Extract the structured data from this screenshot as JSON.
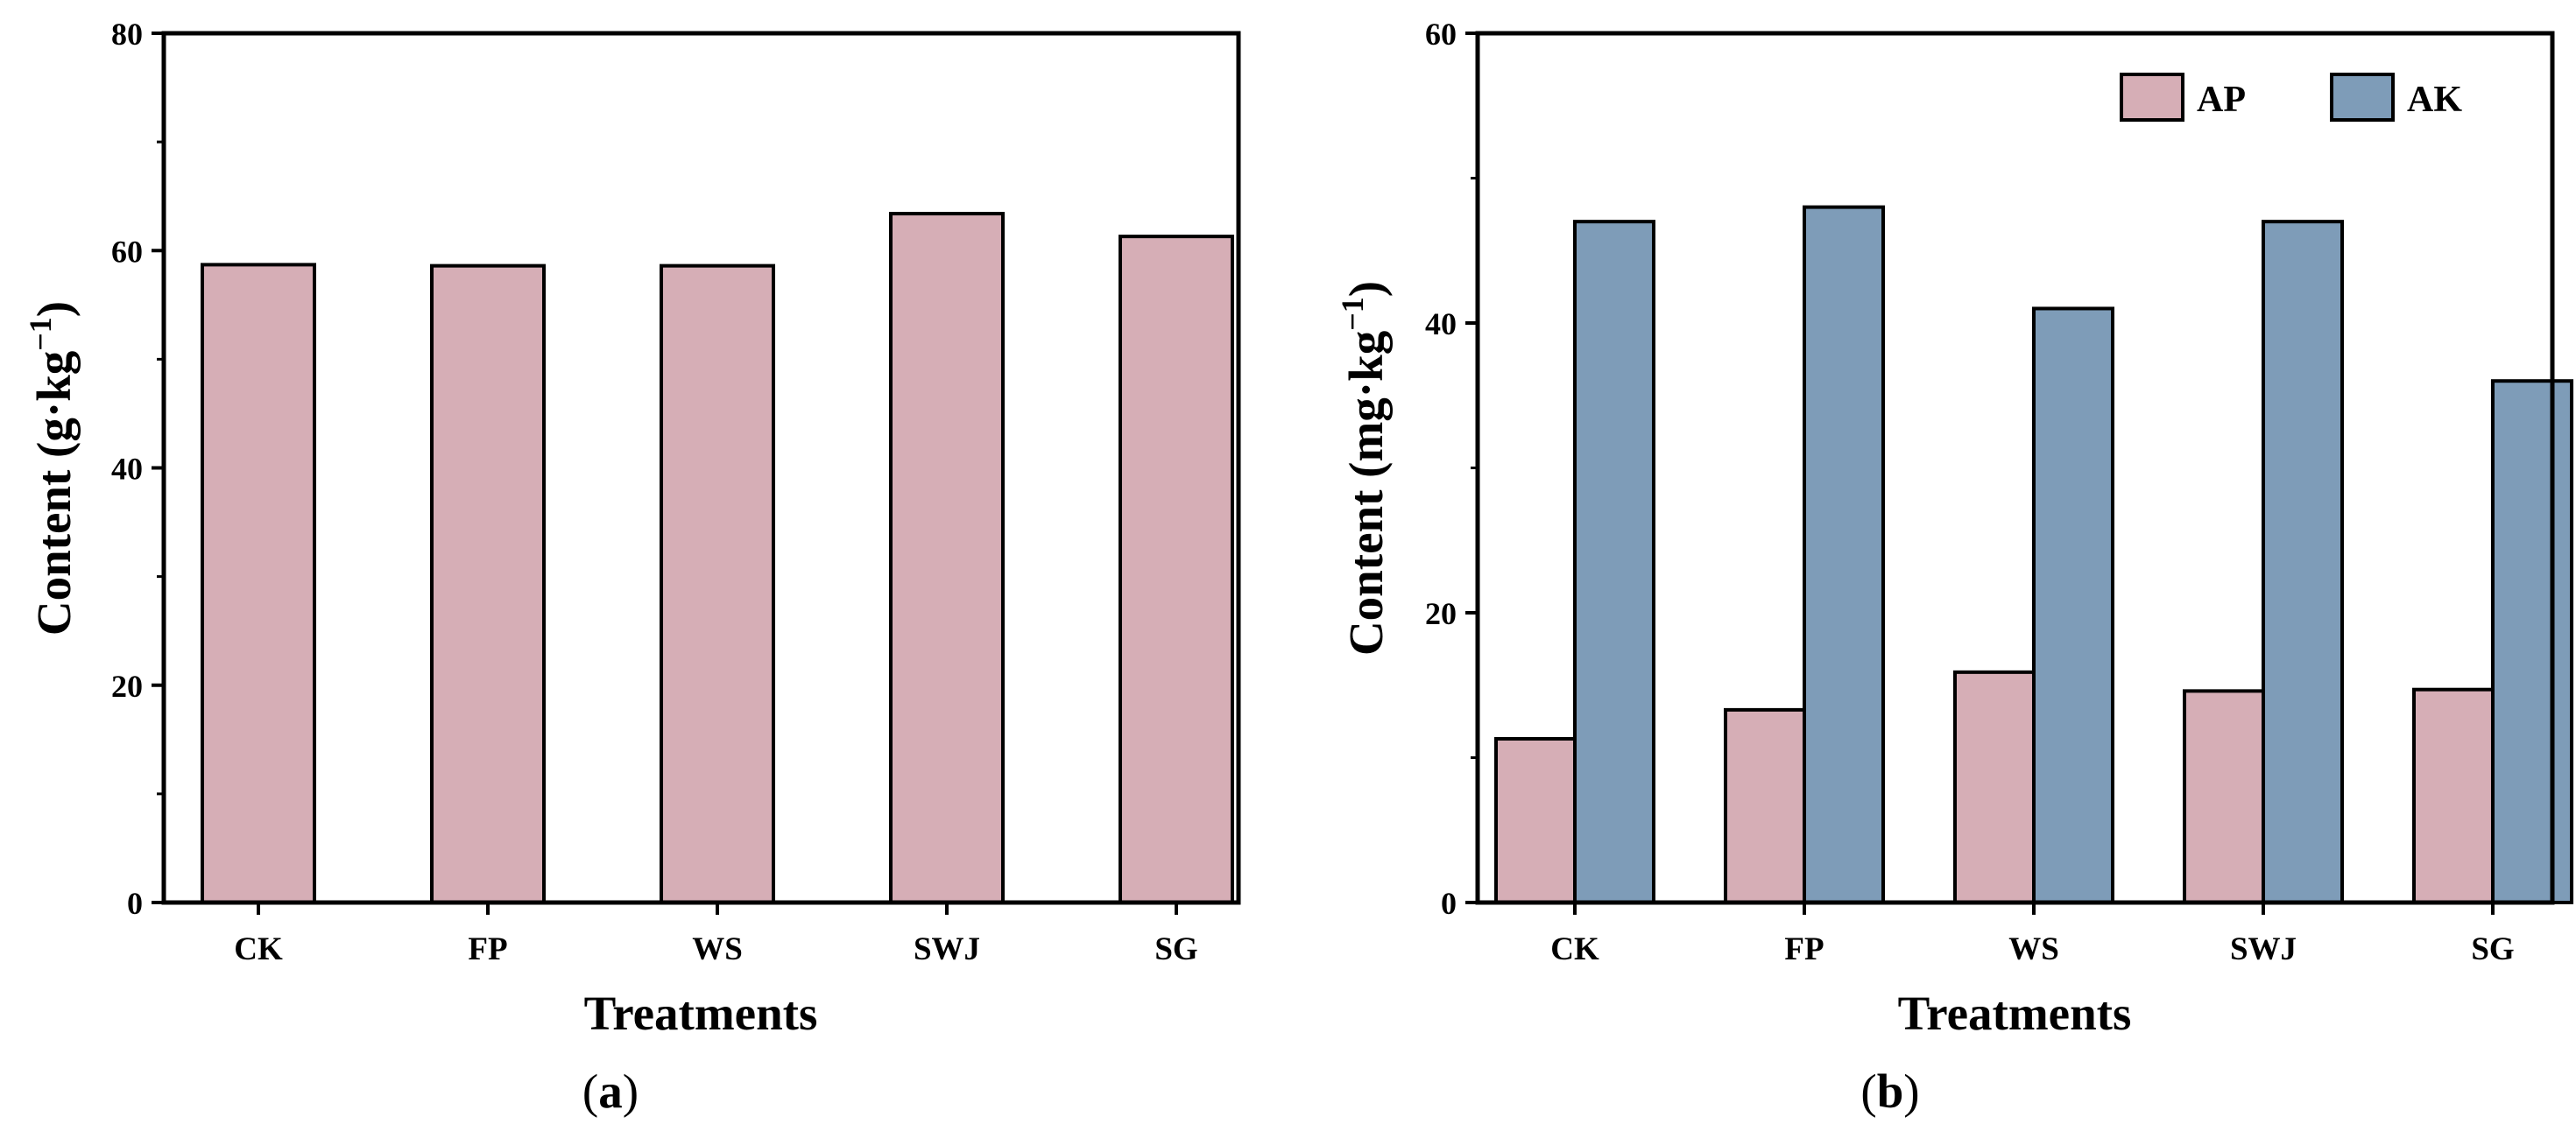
{
  "chart_data": [
    {
      "panel": "a",
      "type": "bar",
      "categories": [
        "CK",
        "FP",
        "WS",
        "SWJ",
        "SG"
      ],
      "series": [
        {
          "name": "Content",
          "color": "#d6aeb6",
          "values": [
            58.7,
            58.6,
            58.6,
            63.4,
            61.3
          ]
        }
      ],
      "title": "",
      "xlabel": "Treatments",
      "ylabel": "Content (g·kg",
      "ylabel_sup": "−1",
      "ylabel_close": ")",
      "ylim": [
        0,
        80
      ],
      "yticks": [
        0,
        20,
        40,
        60,
        80
      ],
      "yticks_minor": [
        10,
        30,
        50,
        70
      ],
      "grid": false,
      "legend": null,
      "caption_open": "(",
      "caption_letter": "a",
      "caption_close": ")"
    },
    {
      "panel": "b",
      "type": "bar",
      "categories": [
        "CK",
        "FP",
        "WS",
        "SWJ",
        "SG"
      ],
      "series": [
        {
          "name": "AP",
          "color": "#d6aeb6",
          "values": [
            11.3,
            13.3,
            15.9,
            14.6,
            14.7
          ]
        },
        {
          "name": "AK",
          "color": "#7e9cb8",
          "values": [
            47.0,
            48.0,
            41.0,
            47.0,
            36.0
          ]
        }
      ],
      "title": "",
      "xlabel": "Treatments",
      "ylabel": "Content (mg·kg",
      "ylabel_sup": "−1",
      "ylabel_close": ")",
      "ylim": [
        0,
        60
      ],
      "yticks": [
        0,
        20,
        40,
        60
      ],
      "yticks_minor": [
        10,
        30,
        50
      ],
      "grid": false,
      "legend": "top-right",
      "caption_open": "(",
      "caption_letter": "b",
      "caption_close": ")"
    }
  ]
}
